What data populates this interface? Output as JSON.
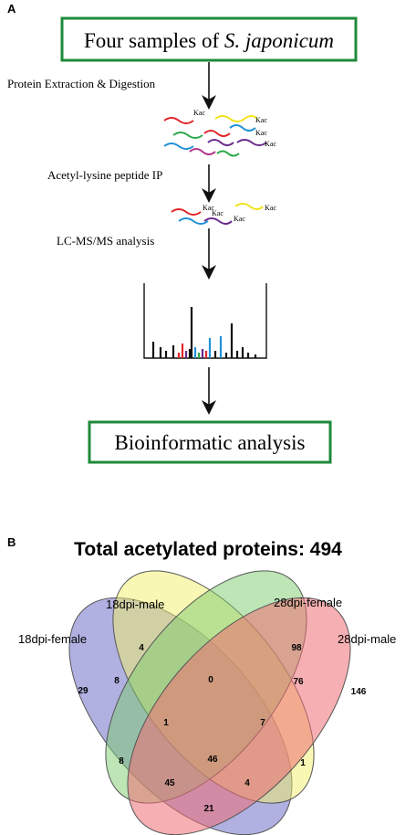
{
  "panel_a": {
    "panel_label": "A",
    "top_box": {
      "text_main": "Four samples of ",
      "text_italic": "S. japonicum"
    },
    "step1_label": "Protein Extraction & Digestion",
    "step2_label": "Acetyl-lysine peptide IP",
    "step3_label": "LC-MS/MS analysis",
    "kac_label": "Kac",
    "bottom_box": {
      "text": "Bioinformatic analysis"
    },
    "colors": {
      "box_border": "#1f8a3b",
      "peptide_red": "#e0262a",
      "peptide_yellow": "#f2e31b",
      "peptide_blue": "#1e90d6",
      "peptide_green": "#2aa84a",
      "peptide_purple": "#6a2b8c",
      "peptide_magenta": "#b0338a"
    }
  },
  "panel_b": {
    "panel_label": "B",
    "title": "Total acetylated proteins: 494",
    "sets": [
      {
        "name": "18dpi-female",
        "color": "#6f6fc8"
      },
      {
        "name": "18dpi-male",
        "color": "#f1f06a"
      },
      {
        "name": "28dpi-female",
        "color": "#7ccc6e"
      },
      {
        "name": "28dpi-male",
        "color": "#ef6e72"
      }
    ],
    "regions": {
      "only_18f": "29",
      "only_18m": "4",
      "only_28f": "98",
      "only_28m": "146",
      "f18_m18": "8",
      "m18_f28": "0",
      "f28_m28": "76",
      "f18_m18_f28": "1",
      "m18_f28_m28": "7",
      "f18_f28": "8",
      "m18_m28": "1",
      "all_four": "46",
      "f18_f28_m28": "45",
      "f18_m18_m28": "4",
      "f18_m28": "21"
    }
  }
}
